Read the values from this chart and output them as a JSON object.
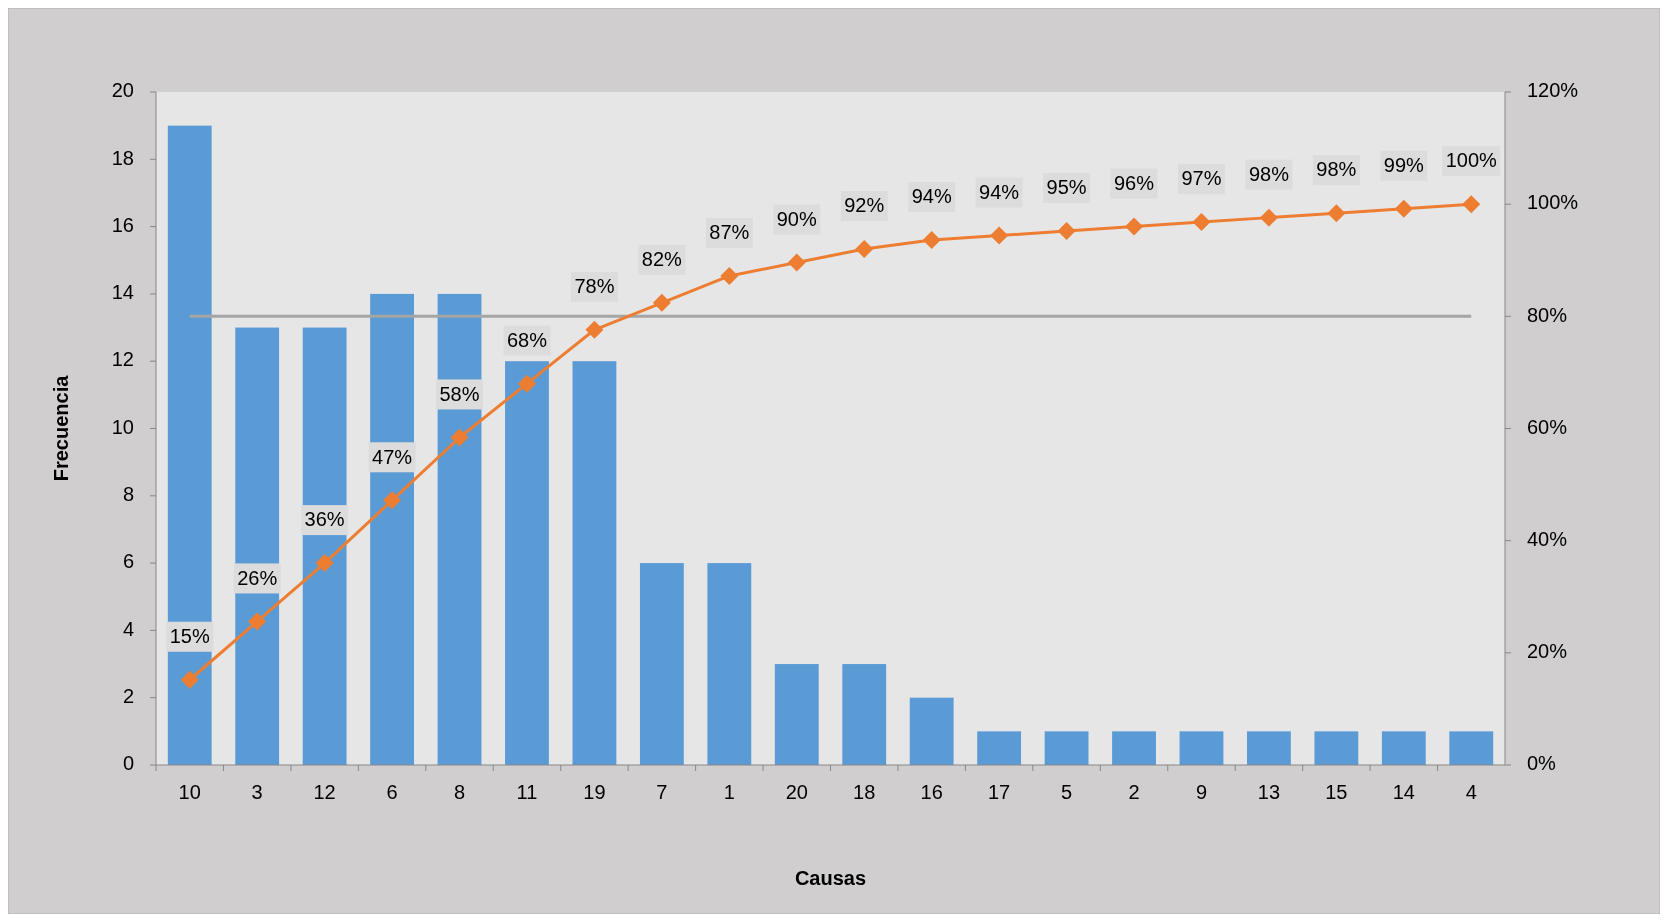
{
  "chart_data": {
    "type": "bar",
    "xlabel": "Causas",
    "ylabel": "Frecuencia",
    "categories": [
      "10",
      "3",
      "12",
      "6",
      "8",
      "11",
      "19",
      "7",
      "1",
      "20",
      "18",
      "16",
      "17",
      "5",
      "2",
      "9",
      "13",
      "15",
      "14",
      "4"
    ],
    "series": [
      {
        "color": "#5b9bd5",
        "values": [
          19,
          13,
          13,
          14,
          14,
          12,
          12,
          6,
          6,
          3,
          3,
          2,
          1,
          1,
          1,
          1,
          1,
          1,
          1,
          1
        ]
      },
      {
        "type": "line",
        "axis": "y2",
        "color": "#ed7d31",
        "marker": "diamond",
        "values": [
          15.2,
          25.6,
          36,
          47.2,
          58.4,
          68,
          77.6,
          82.4,
          87.2,
          89.6,
          92,
          93.6,
          94.4,
          95.2,
          96,
          96.8,
          97.6,
          98.4,
          99.2,
          100
        ],
        "value_labels": [
          "15%",
          "26%",
          "36%",
          "47%",
          "58%",
          "68%",
          "78%",
          "82%",
          "87%",
          "90%",
          "92%",
          "94%",
          "94%",
          "95%",
          "96%",
          "97%",
          "98%",
          "98%",
          "99%",
          "100%"
        ]
      }
    ],
    "ylim": [
      0,
      20
    ],
    "yticks": [
      0,
      2,
      4,
      6,
      8,
      10,
      12,
      14,
      16,
      18,
      20
    ],
    "y2lim": [
      0,
      120
    ],
    "y2ticks": [
      {
        "value": 0,
        "label": "0%"
      },
      {
        "value": 20,
        "label": "20%"
      },
      {
        "value": 40,
        "label": "40%"
      },
      {
        "value": 60,
        "label": "60%"
      },
      {
        "value": 80,
        "label": "80%"
      },
      {
        "value": 100,
        "label": "100%"
      },
      {
        "value": 120,
        "label": "120%"
      }
    ],
    "ref_lines": [
      {
        "axis": "y2",
        "value": 80,
        "label": null,
        "color": "#a5a5a5"
      }
    ]
  }
}
